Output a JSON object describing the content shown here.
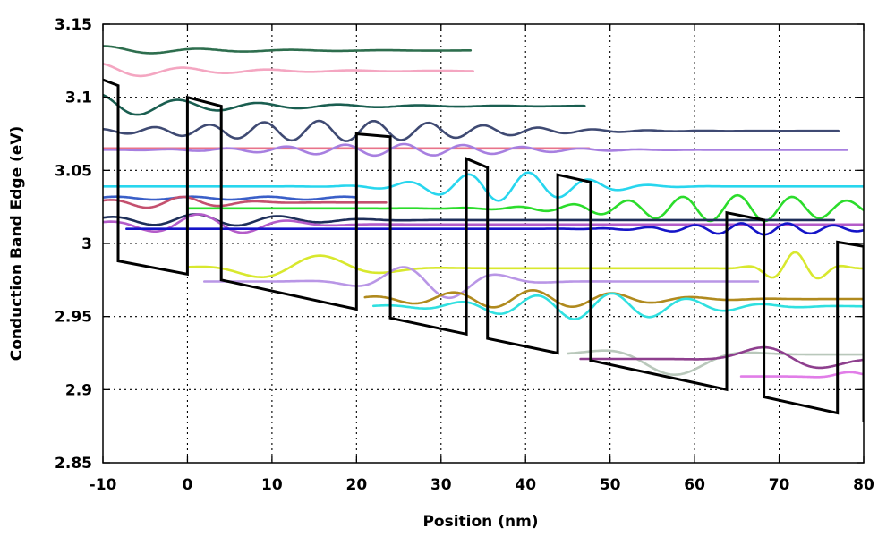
{
  "chart_data": {
    "type": "line",
    "xlabel": "Position (nm)",
    "ylabel": "Conduction Band Edge (eV)",
    "xlim": [
      -10,
      80
    ],
    "ylim": [
      2.85,
      3.15
    ],
    "xticks": [
      -10,
      0,
      10,
      20,
      30,
      40,
      50,
      60,
      70,
      80
    ],
    "yticks": [
      2.85,
      2.9,
      2.95,
      3.0,
      3.05,
      3.1,
      3.15
    ],
    "ytick_labels": [
      "2.85",
      "2.9",
      "2.95",
      "3",
      "3.05",
      "3.1",
      "3.15"
    ],
    "grid": true,
    "band_edge": {
      "color": "#000000",
      "x": [
        -10,
        -8.2,
        -8.2,
        0,
        0,
        4,
        4,
        20,
        20,
        24,
        24,
        33,
        33,
        35.5,
        35.5,
        43.8,
        43.8,
        47.7,
        47.7,
        63.8,
        63.8,
        68.2,
        68.2,
        76.9,
        76.9,
        80,
        80
      ],
      "y": [
        3.112,
        3.108,
        2.988,
        2.979,
        3.1,
        3.094,
        2.975,
        2.955,
        3.075,
        3.073,
        2.949,
        2.938,
        3.058,
        3.052,
        2.935,
        2.925,
        3.047,
        3.042,
        2.92,
        2.9,
        3.021,
        3.016,
        2.895,
        2.884,
        3.001,
        2.998,
        2.878
      ]
    },
    "series": [
      {
        "color": "#2e6e4e",
        "xmin": -10,
        "xmax": 33.5,
        "level": 3.132,
        "amp": 0.003,
        "wavelength": 11,
        "amp_decay": 12,
        "phase": 1.3
      },
      {
        "color": "#f4a6c1",
        "xmin": -10,
        "xmax": 33.8,
        "level": 3.118,
        "amp": 0.005,
        "wavelength": 10,
        "amp_decay": 12,
        "phase": 1.8
      },
      {
        "color": "#1a5e50",
        "xmin": -10,
        "xmax": 47,
        "level": 3.094,
        "amp": 0.008,
        "wavelength": 9.5,
        "amp_decay": 14,
        "phase": 1.9
      },
      {
        "color": "#3f4a73",
        "xmin": -10,
        "xmax": 77,
        "level": 3.077,
        "amp": 0.007,
        "wavelength": 6.5,
        "amp_center": 18,
        "amp_width": 22,
        "phase": 2.0
      },
      {
        "color": "#e8738a",
        "xmin": -10,
        "xmax": 47.5,
        "level": 3.065,
        "amp": 0.0,
        "wavelength": 10,
        "phase": 0
      },
      {
        "color": "#a77fe0",
        "xmin": -10,
        "xmax": 78,
        "level": 3.064,
        "amp": 0.004,
        "wavelength": 7,
        "amp_center": 25,
        "amp_width": 18,
        "phase": 1.0
      },
      {
        "color": "#28d6ee",
        "xmin": -10,
        "xmax": 80,
        "level": 3.039,
        "amp": 0.01,
        "wavelength": 7.2,
        "amp_center": 38,
        "amp_width": 11,
        "phase": 1.6
      },
      {
        "color": "#3a5fc8",
        "xmin": -10,
        "xmax": 20,
        "level": 3.031,
        "amp": 0.001,
        "wavelength": 9,
        "phase": 0.5
      },
      {
        "color": "#c4506e",
        "xmin": -10,
        "xmax": 23.5,
        "level": 3.028,
        "amp": 0.004,
        "wavelength": 9,
        "amp_center": -2,
        "amp_width": 8,
        "phase": 1.2
      },
      {
        "color": "#2bdc2b",
        "xmin": 0,
        "xmax": 80,
        "level": 3.024,
        "amp": 0.009,
        "wavelength": 6.5,
        "amp_center": 65,
        "amp_width": 18,
        "phase": 1.5
      },
      {
        "color": "#1e2f5a",
        "xmin": -10,
        "xmax": 76.5,
        "level": 3.016,
        "amp": 0.004,
        "wavelength": 10,
        "amp_center": 2,
        "amp_width": 14,
        "phase": 1.0
      },
      {
        "color": "#b45cc9",
        "xmin": -10,
        "xmax": 80,
        "level": 3.013,
        "amp": 0.007,
        "wavelength": 11,
        "amp_center": 2,
        "amp_width": 10,
        "phase": 1.4
      },
      {
        "color": "#1414c8",
        "xmin": -7.2,
        "xmax": 80,
        "level": 3.01,
        "amp": 0.004,
        "wavelength": 5.5,
        "amp_center": 68,
        "amp_width": 12,
        "phase": 0.2
      },
      {
        "color": "#d8e82e",
        "xmin": 0,
        "xmax": 80,
        "level": 2.983,
        "amp": 0.009,
        "wavelength": 16,
        "amp_center": 14,
        "amp_width": 9,
        "phase": 1.6,
        "extra": [
          {
            "amp": 0.011,
            "wavelength": 6,
            "center": 72,
            "width": 4,
            "phase": 1.7
          }
        ]
      },
      {
        "color": "#b996e6",
        "xmin": 2,
        "xmax": 67.5,
        "level": 2.974,
        "amp": 0.012,
        "wavelength": 12,
        "amp_center": 29,
        "amp_width": 8,
        "phase": 2.0
      },
      {
        "color": "#b08a1e",
        "xmin": 21,
        "xmax": 80,
        "level": 2.962,
        "amp": 0.006,
        "wavelength": 9.5,
        "amp_center": 40,
        "amp_width": 16,
        "phase": 1.0
      },
      {
        "color": "#30e0e0",
        "xmin": 22,
        "xmax": 80,
        "level": 2.957,
        "amp": 0.009,
        "wavelength": 9,
        "amp_center": 48,
        "amp_width": 15,
        "phase": 0.7
      },
      {
        "color": "#b9c8bb",
        "xmin": 45,
        "xmax": 80,
        "level": 2.924,
        "amp": 0.014,
        "wavelength": 24,
        "amp_center": 57,
        "amp_width": 7,
        "phase": 1.3
      },
      {
        "color": "#8e3f8e",
        "xmin": 46.5,
        "xmax": 80,
        "level": 2.921,
        "amp": 0.011,
        "wavelength": 20,
        "amp_center": 71,
        "amp_width": 6,
        "phase": 1.5
      },
      {
        "color": "#e17de8",
        "xmin": 65.5,
        "xmax": 80,
        "level": 2.909,
        "amp": 0.003,
        "wavelength": 12,
        "amp_center": 78,
        "amp_width": 3,
        "phase": 1.0
      }
    ]
  }
}
